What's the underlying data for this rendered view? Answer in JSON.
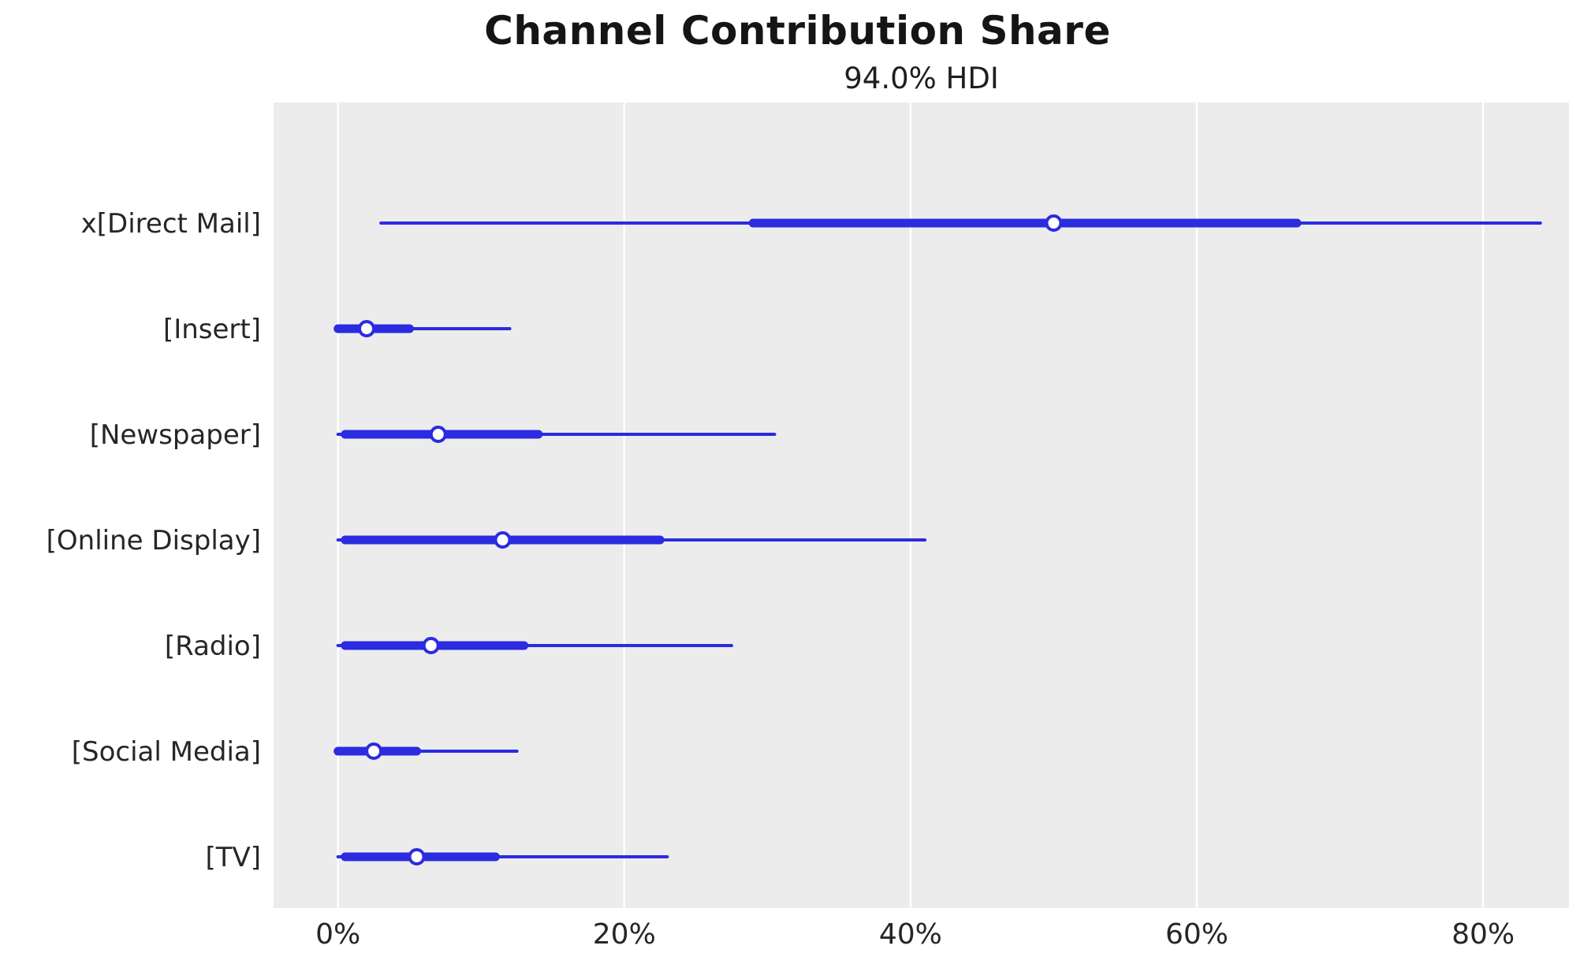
{
  "chart_data": {
    "type": "forest",
    "title": "Channel Contribution Share",
    "subtitle": "94.0% HDI",
    "xlabel": "",
    "ylabel": "",
    "unit": "%",
    "xlim": [
      -4.5,
      86
    ],
    "x_ticks": [
      0,
      20,
      40,
      60,
      80
    ],
    "x_tick_labels": [
      "0%",
      "20%",
      "40%",
      "60%",
      "80%"
    ],
    "grid": "vertical-white-on-gray",
    "legend": "none",
    "rows": [
      {
        "label": "x[Direct Mail]",
        "hdi_low": 3,
        "hdi_high": 84,
        "quartile_low": 29,
        "quartile_high": 67,
        "median": 50
      },
      {
        "label": "[Insert]",
        "hdi_low": 0,
        "hdi_high": 12,
        "quartile_low": 0,
        "quartile_high": 5,
        "median": 2
      },
      {
        "label": "[Newspaper]",
        "hdi_low": 0,
        "hdi_high": 30.5,
        "quartile_low": 0.5,
        "quartile_high": 14,
        "median": 7
      },
      {
        "label": "[Online Display]",
        "hdi_low": 0,
        "hdi_high": 41,
        "quartile_low": 0.5,
        "quartile_high": 22.5,
        "median": 11.5
      },
      {
        "label": "[Radio]",
        "hdi_low": 0,
        "hdi_high": 27.5,
        "quartile_low": 0.5,
        "quartile_high": 13,
        "median": 6.5
      },
      {
        "label": "[Social Media]",
        "hdi_low": 0,
        "hdi_high": 12.5,
        "quartile_low": 0,
        "quartile_high": 5.5,
        "median": 2.5
      },
      {
        "label": "[TV]",
        "hdi_low": 0,
        "hdi_high": 23,
        "quartile_low": 0.5,
        "quartile_high": 11,
        "median": 5.5
      }
    ],
    "colors": {
      "line": "#2b2be0",
      "marker_fill": "#ffffff",
      "plot_bg": "#ececec",
      "grid": "#ffffff",
      "text": "#262626",
      "title": "#151515"
    }
  }
}
